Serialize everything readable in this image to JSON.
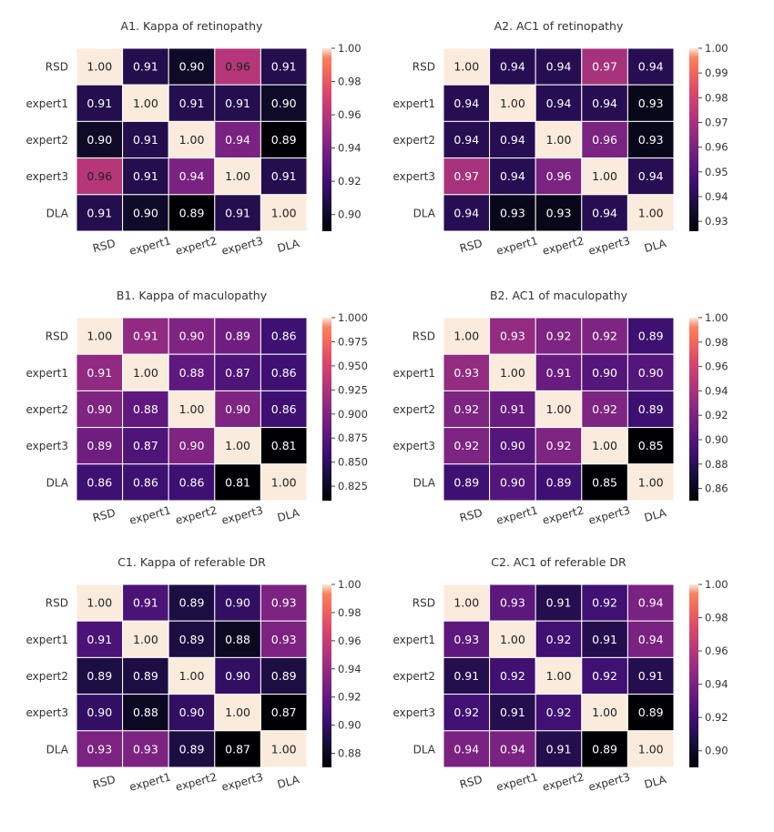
{
  "labels": [
    "RSD",
    "expert1",
    "expert2",
    "expert3",
    "DLA"
  ],
  "chart_data": [
    {
      "type": "heatmap",
      "title": "A1. Kappa of retinopathy",
      "rows": [
        "RSD",
        "expert1",
        "expert2",
        "expert3",
        "DLA"
      ],
      "cols": [
        "RSD",
        "expert1",
        "expert2",
        "expert3",
        "DLA"
      ],
      "values": [
        [
          1.0,
          0.91,
          0.9,
          0.96,
          0.91
        ],
        [
          0.91,
          1.0,
          0.91,
          0.91,
          0.9
        ],
        [
          0.9,
          0.91,
          1.0,
          0.94,
          0.89
        ],
        [
          0.96,
          0.91,
          0.94,
          1.0,
          0.91
        ],
        [
          0.91,
          0.9,
          0.89,
          0.91,
          1.0
        ]
      ],
      "vmin": 0.89,
      "vmax": 1.0,
      "colorbar_ticks": [
        "1.00",
        "0.98",
        "0.96",
        "0.94",
        "0.92",
        "0.90"
      ],
      "colormap": "magma"
    },
    {
      "type": "heatmap",
      "title": "A2. AC1 of retinopathy",
      "rows": [
        "RSD",
        "expert1",
        "expert2",
        "expert3",
        "DLA"
      ],
      "cols": [
        "RSD",
        "expert1",
        "expert2",
        "expert3",
        "DLA"
      ],
      "values": [
        [
          1.0,
          0.94,
          0.94,
          0.97,
          0.94
        ],
        [
          0.94,
          1.0,
          0.94,
          0.94,
          0.93
        ],
        [
          0.94,
          0.94,
          1.0,
          0.96,
          0.93
        ],
        [
          0.97,
          0.94,
          0.96,
          1.0,
          0.94
        ],
        [
          0.94,
          0.93,
          0.93,
          0.94,
          1.0
        ]
      ],
      "vmin": 0.926,
      "vmax": 1.0,
      "colorbar_ticks": [
        "1.00",
        "0.99",
        "0.98",
        "0.97",
        "0.96",
        "0.95",
        "0.94",
        "0.93"
      ],
      "colormap": "magma"
    },
    {
      "type": "heatmap",
      "title": "B1. Kappa of maculopathy",
      "rows": [
        "RSD",
        "expert1",
        "expert2",
        "expert3",
        "DLA"
      ],
      "cols": [
        "RSD",
        "expert1",
        "expert2",
        "expert3",
        "DLA"
      ],
      "values": [
        [
          1.0,
          0.91,
          0.9,
          0.89,
          0.86
        ],
        [
          0.91,
          1.0,
          0.88,
          0.87,
          0.86
        ],
        [
          0.9,
          0.88,
          1.0,
          0.9,
          0.86
        ],
        [
          0.89,
          0.87,
          0.9,
          1.0,
          0.81
        ],
        [
          0.86,
          0.86,
          0.86,
          0.81,
          1.0
        ]
      ],
      "vmin": 0.81,
      "vmax": 1.0,
      "colorbar_ticks": [
        "1.000",
        "0.975",
        "0.950",
        "0.925",
        "0.900",
        "0.875",
        "0.850",
        "0.825"
      ],
      "colormap": "magma"
    },
    {
      "type": "heatmap",
      "title": "B2. AC1 of maculopathy",
      "rows": [
        "RSD",
        "expert1",
        "expert2",
        "expert3",
        "DLA"
      ],
      "cols": [
        "RSD",
        "expert1",
        "expert2",
        "expert3",
        "DLA"
      ],
      "values": [
        [
          1.0,
          0.93,
          0.92,
          0.92,
          0.89
        ],
        [
          0.93,
          1.0,
          0.91,
          0.9,
          0.9
        ],
        [
          0.92,
          0.91,
          1.0,
          0.92,
          0.89
        ],
        [
          0.92,
          0.9,
          0.92,
          1.0,
          0.85
        ],
        [
          0.89,
          0.9,
          0.89,
          0.85,
          1.0
        ]
      ],
      "vmin": 0.85,
      "vmax": 1.0,
      "colorbar_ticks": [
        "1.00",
        "0.98",
        "0.96",
        "0.94",
        "0.92",
        "0.90",
        "0.88",
        "0.86"
      ],
      "colormap": "magma"
    },
    {
      "type": "heatmap",
      "title": "C1. Kappa of referable DR",
      "rows": [
        "RSD",
        "expert1",
        "expert2",
        "expert3",
        "DLA"
      ],
      "cols": [
        "RSD",
        "expert1",
        "expert2",
        "expert3",
        "DLA"
      ],
      "values": [
        [
          1.0,
          0.91,
          0.89,
          0.9,
          0.93
        ],
        [
          0.91,
          1.0,
          0.89,
          0.88,
          0.93
        ],
        [
          0.89,
          0.89,
          1.0,
          0.9,
          0.89
        ],
        [
          0.9,
          0.88,
          0.9,
          1.0,
          0.87
        ],
        [
          0.93,
          0.93,
          0.89,
          0.87,
          1.0
        ]
      ],
      "vmin": 0.87,
      "vmax": 1.0,
      "colorbar_ticks": [
        "1.00",
        "0.98",
        "0.96",
        "0.94",
        "0.92",
        "0.90",
        "0.88"
      ],
      "colormap": "magma"
    },
    {
      "type": "heatmap",
      "title": "C2. AC1 of referable DR",
      "rows": [
        "RSD",
        "expert1",
        "expert2",
        "expert3",
        "DLA"
      ],
      "cols": [
        "RSD",
        "expert1",
        "expert2",
        "expert3",
        "DLA"
      ],
      "values": [
        [
          1.0,
          0.93,
          0.91,
          0.92,
          0.94
        ],
        [
          0.93,
          1.0,
          0.92,
          0.91,
          0.94
        ],
        [
          0.91,
          0.92,
          1.0,
          0.92,
          0.91
        ],
        [
          0.92,
          0.91,
          0.92,
          1.0,
          0.89
        ],
        [
          0.94,
          0.94,
          0.91,
          0.89,
          1.0
        ]
      ],
      "vmin": 0.89,
      "vmax": 1.0,
      "colorbar_ticks": [
        "1.00",
        "0.98",
        "0.96",
        "0.94",
        "0.92",
        "0.90"
      ],
      "colormap": "magma"
    }
  ]
}
